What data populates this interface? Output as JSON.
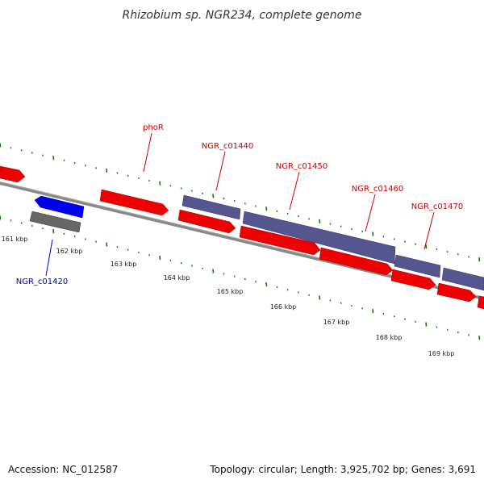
{
  "title": "Rhizobium sp. NGR234, complete genome",
  "accession": "Accession: NC_012587",
  "summary": "Topology: circular; Length: 3,925,702 bp; Genes: 3,691",
  "colors": {
    "forward_cds": "#ee0000",
    "reverse_cds": "#0000ee",
    "grey_feature": "#666666",
    "purple_feature": "#55558f",
    "backbone": "#888888",
    "tick": "#117711",
    "label_red": "#cc0000",
    "label_blue": "#0000cc"
  },
  "ticks": [
    "161 kbp",
    "162 kbp",
    "163 kbp",
    "164 kbp",
    "165 kbp",
    "166 kbp",
    "167 kbp",
    "168 kbp",
    "169 kbp"
  ],
  "gene_labels": [
    {
      "text": "phoR",
      "color": "red"
    },
    {
      "text": "NGR_c01440",
      "color": "red"
    },
    {
      "text": "NGR_c01450",
      "color": "red"
    },
    {
      "text": "NGR_c01460",
      "color": "red"
    },
    {
      "text": "NGR_c01470",
      "color": "red"
    },
    {
      "text": "NGR_c01420",
      "color": "blue"
    }
  ]
}
